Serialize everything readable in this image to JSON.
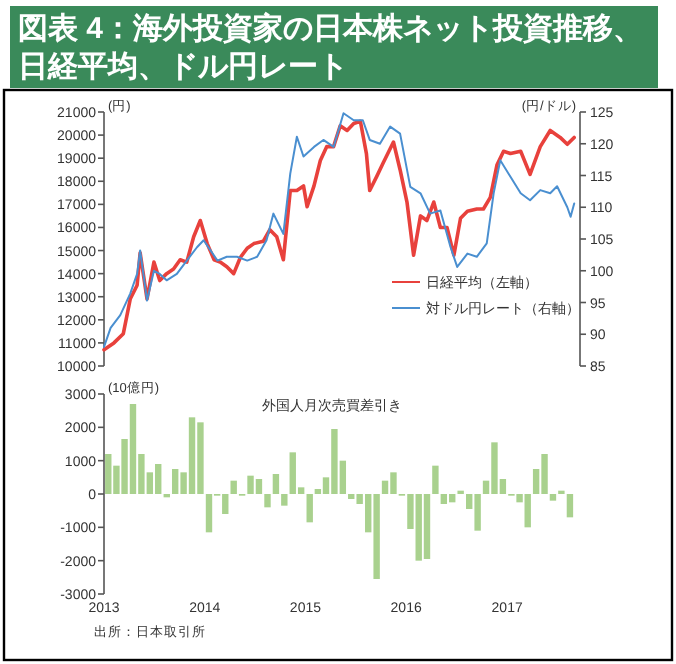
{
  "chart_data": [
    {
      "type": "line",
      "title": "図表 4：海外投資家の日本株ネット投資推移、日経平均、ドル円レート",
      "ylabel": "(円)",
      "y2label": "(円/ドル)",
      "xlim": [
        "2013-01-01",
        "2017-09-22"
      ],
      "ylim": [
        10000,
        21000
      ],
      "yticks": [
        10000,
        11000,
        12000,
        13000,
        14000,
        15000,
        16000,
        17000,
        18000,
        19000,
        20000,
        21000
      ],
      "y2lim": [
        85,
        125
      ],
      "y2ticks": [
        85,
        90,
        95,
        100,
        105,
        110,
        115,
        120,
        125
      ],
      "tick_labels": "y",
      "legend": "bottom right",
      "series": [
        {
          "name": "日経平均（左軸）",
          "color": "#e8413c",
          "x": [
            "2013-01-01",
            "2013-02-06",
            "2013-03-12",
            "2013-04-06",
            "2013-05-01",
            "2013-05-12",
            "2013-06-06",
            "2013-07-01",
            "2013-07-22",
            "2013-08-16",
            "2013-09-10",
            "2013-10-04",
            "2013-10-28",
            "2013-11-22",
            "2013-12-16",
            "2014-01-10",
            "2014-02-04",
            "2014-02-26",
            "2014-03-22",
            "2014-04-16",
            "2014-05-10",
            "2014-06-04",
            "2014-06-28",
            "2014-08-01",
            "2014-08-25",
            "2014-09-19",
            "2014-10-13",
            "2014-11-07",
            "2014-12-01",
            "2014-12-25",
            "2015-01-07",
            "2015-02-01",
            "2015-02-24",
            "2015-03-19",
            "2015-04-13",
            "2015-05-07",
            "2015-06-01",
            "2015-06-25",
            "2015-07-19",
            "2015-08-10",
            "2015-08-22",
            "2015-09-16",
            "2015-10-10",
            "2015-11-16",
            "2015-12-10",
            "2016-01-04",
            "2016-01-28",
            "2016-02-22",
            "2016-03-16",
            "2016-04-10",
            "2016-05-04",
            "2016-05-28",
            "2016-06-22",
            "2016-07-16",
            "2016-08-10",
            "2016-09-13",
            "2016-10-07",
            "2016-11-01",
            "2016-11-25",
            "2016-12-19",
            "2017-01-13",
            "2017-02-19",
            "2017-03-25",
            "2017-05-01",
            "2017-06-06",
            "2017-07-12",
            "2017-08-07",
            "2017-09-01"
          ],
          "values": [
            10700,
            11000,
            11400,
            12900,
            13500,
            14900,
            12900,
            14500,
            13700,
            14000,
            14200,
            14600,
            14500,
            15600,
            16300,
            15300,
            14600,
            14500,
            14300,
            14000,
            14700,
            15100,
            15300,
            15400,
            15900,
            15600,
            14600,
            17600,
            17600,
            17800,
            16900,
            17800,
            18900,
            19500,
            19500,
            20400,
            20200,
            20500,
            20600,
            19200,
            17600,
            18200,
            18800,
            19700,
            18500,
            17100,
            14800,
            16500,
            16300,
            17100,
            16000,
            16000,
            14800,
            16400,
            16700,
            16800,
            16800,
            17300,
            18700,
            19300,
            19200,
            19300,
            18300,
            19500,
            20200,
            19900,
            19600,
            19900
          ]
        },
        {
          "name": "対ドル円レート（右軸）",
          "color": "#4a8fd0",
          "axis": "y2",
          "x": [
            "2013-01-01",
            "2013-01-25",
            "2013-03-01",
            "2013-04-06",
            "2013-05-01",
            "2013-05-12",
            "2013-06-06",
            "2013-07-01",
            "2013-07-22",
            "2013-08-16",
            "2013-09-22",
            "2013-10-28",
            "2013-12-04",
            "2013-12-28",
            "2014-01-22",
            "2014-02-16",
            "2014-03-22",
            "2014-04-28",
            "2014-06-04",
            "2014-07-10",
            "2014-08-13",
            "2014-09-07",
            "2014-10-13",
            "2014-11-07",
            "2014-12-01",
            "2014-12-25",
            "2015-02-01",
            "2015-03-07",
            "2015-04-13",
            "2015-05-19",
            "2015-06-25",
            "2015-07-28",
            "2015-08-22",
            "2015-09-28",
            "2015-11-04",
            "2015-12-10",
            "2016-01-16",
            "2016-02-22",
            "2016-03-28",
            "2016-05-04",
            "2016-06-10",
            "2016-07-04",
            "2016-08-10",
            "2016-09-13",
            "2016-10-19",
            "2016-11-13",
            "2016-12-07",
            "2017-01-13",
            "2017-02-19",
            "2017-03-25",
            "2017-05-01",
            "2017-06-06",
            "2017-07-01",
            "2017-08-07",
            "2017-08-19",
            "2017-09-01"
          ],
          "values": [
            88,
            91,
            93,
            96.4,
            99.5,
            103.2,
            95.3,
            100,
            99.5,
            98.5,
            99.5,
            101.6,
            103.7,
            104.8,
            103.2,
            101.6,
            102.2,
            102.2,
            101.6,
            102.2,
            104.8,
            109,
            105.8,
            115.3,
            121.1,
            118,
            119.5,
            120.6,
            119.5,
            124.8,
            123.7,
            123.7,
            120.6,
            120,
            122.7,
            121.6,
            113.2,
            112.2,
            109,
            109.5,
            103.7,
            100.6,
            102.7,
            102.2,
            104.3,
            112.2,
            117.4,
            114.8,
            112.2,
            111.1,
            112.7,
            112.2,
            113.3,
            110,
            108.5,
            110.6
          ]
        }
      ]
    },
    {
      "type": "bar",
      "subtitle": "外国人月次売買差引き",
      "ylabel": "(10億円)",
      "color": "#a9d18e",
      "xlim": [
        "2013-01-01",
        "2017-09-22"
      ],
      "xticks": [
        "2013",
        "2014",
        "2015",
        "2016",
        "2017"
      ],
      "ylim": [
        -3000,
        3000
      ],
      "yticks": [
        -3000,
        -2000,
        -1000,
        0,
        1000,
        2000,
        3000
      ],
      "annotations": [
        "出所：日本取引所"
      ],
      "x": [
        "2013-01",
        "2013-02",
        "2013-03",
        "2013-04",
        "2013-05",
        "2013-06",
        "2013-07",
        "2013-08",
        "2013-09",
        "2013-10",
        "2013-11",
        "2013-12",
        "2014-01",
        "2014-02",
        "2014-03",
        "2014-04",
        "2014-05",
        "2014-06",
        "2014-07",
        "2014-08",
        "2014-09",
        "2014-10",
        "2014-11",
        "2014-12",
        "2015-01",
        "2015-02",
        "2015-03",
        "2015-04",
        "2015-05",
        "2015-06",
        "2015-07",
        "2015-08",
        "2015-09",
        "2015-10",
        "2015-11",
        "2015-12",
        "2016-01",
        "2016-02",
        "2016-03",
        "2016-04",
        "2016-05",
        "2016-06",
        "2016-07",
        "2016-08",
        "2016-09",
        "2016-10",
        "2016-11",
        "2016-12",
        "2017-01",
        "2017-02",
        "2017-03",
        "2017-04",
        "2017-05",
        "2017-06",
        "2017-07",
        "2017-08"
      ],
      "values": [
        1200,
        850,
        1650,
        2700,
        1200,
        650,
        900,
        -100,
        750,
        650,
        2300,
        2150,
        -1150,
        -50,
        -600,
        400,
        -50,
        550,
        450,
        -400,
        600,
        -350,
        1250,
        200,
        -850,
        150,
        500,
        1950,
        1000,
        -150,
        -300,
        -1150,
        -2550,
        400,
        650,
        -50,
        -1050,
        -2000,
        -1950,
        850,
        -300,
        -250,
        100,
        -450,
        -1100,
        400,
        1550,
        450,
        -50,
        -250,
        -1000,
        750,
        1200,
        -200,
        100,
        -700
      ]
    }
  ]
}
